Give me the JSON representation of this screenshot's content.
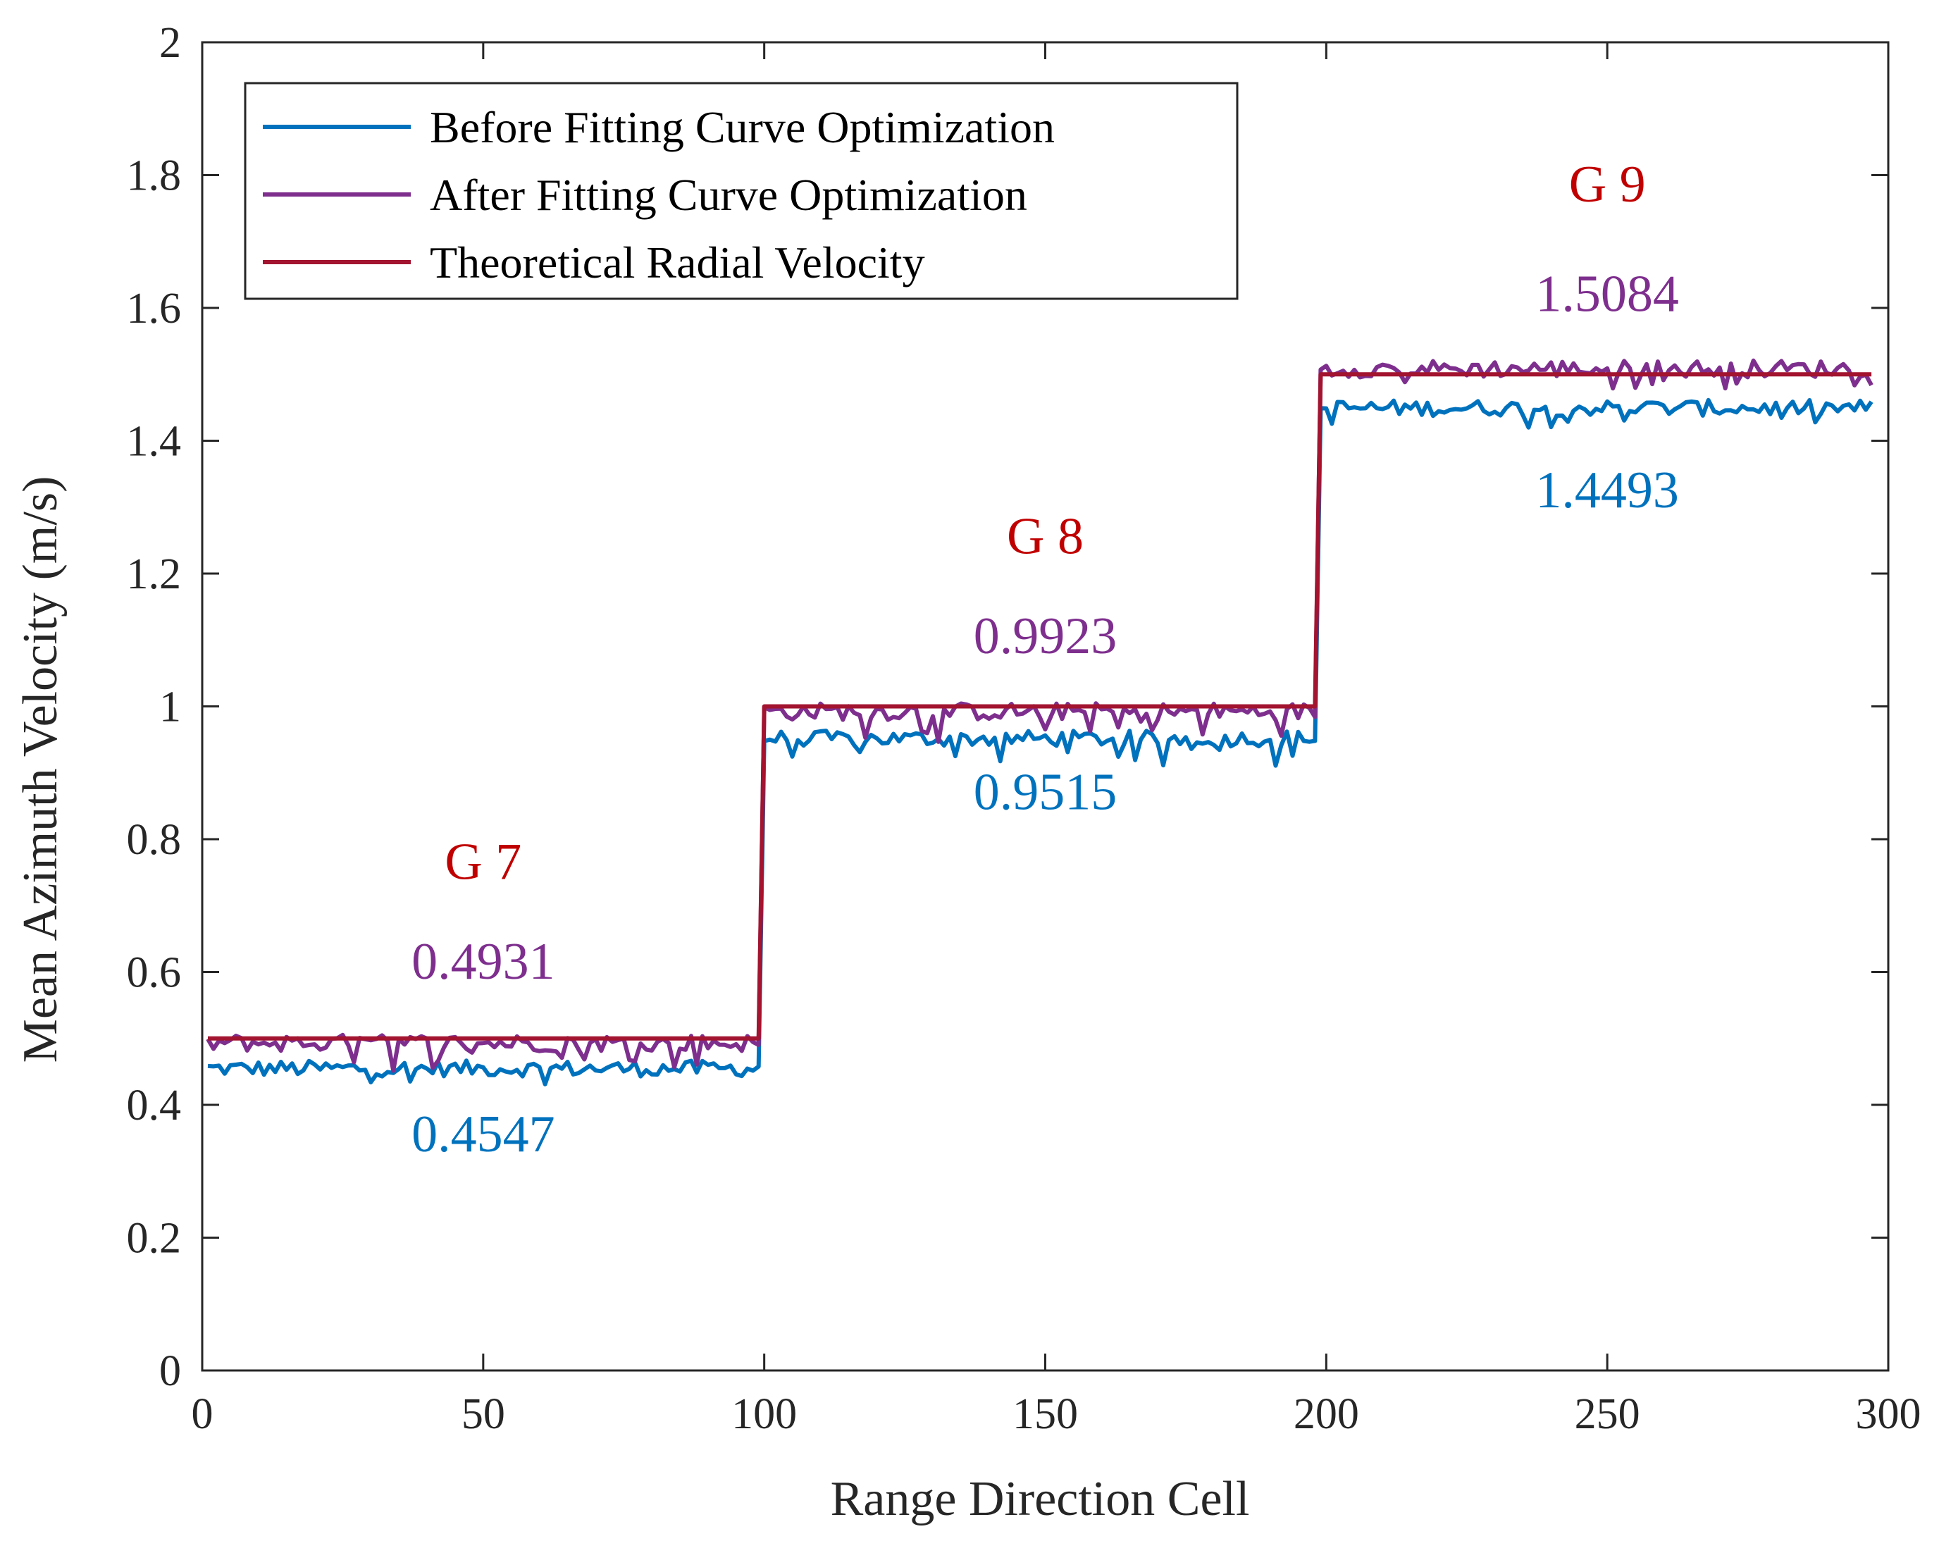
{
  "colors": {
    "before": "#0072BD",
    "after": "#7E2F8E",
    "theoretical": "#A2142F",
    "group_label": "#C00000",
    "axis": "#262626"
  },
  "chart_data": {
    "type": "line",
    "title": "",
    "xlabel": "Range Direction Cell",
    "ylabel": "Mean Azimuth Velocity (m/s)",
    "xlim": [
      0,
      300
    ],
    "ylim": [
      0,
      2
    ],
    "xticks": [
      0,
      50,
      100,
      150,
      200,
      250,
      300
    ],
    "xtick_labels": [
      "0",
      "50",
      "100",
      "150",
      "200",
      "250",
      "300"
    ],
    "yticks": [
      0,
      0.2,
      0.4,
      0.6,
      0.8,
      1,
      1.2,
      1.4,
      1.6,
      1.8,
      2
    ],
    "ytick_labels": [
      "0",
      "0.2",
      "0.4",
      "0.6",
      "0.8",
      "1",
      "1.2",
      "1.4",
      "1.6",
      "1.8",
      "2"
    ],
    "legend_position": "top-left",
    "series": [
      {
        "name": "Before Fitting Curve Optimization",
        "color": "#0072BD",
        "x_range": [
          1,
          297
        ],
        "segments": [
          {
            "x_start": 1,
            "x_end": 99,
            "mean": 0.4547,
            "noise": 0.012
          },
          {
            "x_start": 100,
            "x_end": 198,
            "mean": 0.9515,
            "noise": 0.012
          },
          {
            "x_start": 199,
            "x_end": 297,
            "mean": 1.4493,
            "noise": 0.012
          }
        ]
      },
      {
        "name": "After Fitting Curve Optimization",
        "color": "#7E2F8E",
        "x_range": [
          1,
          297
        ],
        "segments": [
          {
            "x_start": 1,
            "x_end": 99,
            "mean": 0.4931,
            "noise": 0.013
          },
          {
            "x_start": 100,
            "x_end": 198,
            "mean": 0.9923,
            "noise": 0.013
          },
          {
            "x_start": 199,
            "x_end": 297,
            "mean": 1.5084,
            "noise": 0.013
          }
        ]
      },
      {
        "name": "Theoretical Radial Velocity",
        "color": "#A2142F",
        "x": [
          1,
          99,
          100,
          198,
          199,
          297
        ],
        "y": [
          0.5,
          0.5,
          1.0,
          1.0,
          1.5,
          1.5
        ]
      }
    ],
    "annotations": [
      {
        "text": "G 7",
        "x": 50,
        "y": 0.74,
        "color": "#C00000",
        "role": "group"
      },
      {
        "text": "0.4931",
        "x": 50,
        "y": 0.59,
        "color": "#7E2F8E",
        "role": "after"
      },
      {
        "text": "0.4547",
        "x": 50,
        "y": 0.33,
        "color": "#0072BD",
        "role": "before"
      },
      {
        "text": "G 8",
        "x": 150,
        "y": 1.23,
        "color": "#C00000",
        "role": "group"
      },
      {
        "text": "0.9923",
        "x": 150,
        "y": 1.08,
        "color": "#7E2F8E",
        "role": "after"
      },
      {
        "text": "0.9515",
        "x": 150,
        "y": 0.845,
        "color": "#0072BD",
        "role": "before"
      },
      {
        "text": "G 9",
        "x": 250,
        "y": 1.76,
        "color": "#C00000",
        "role": "group"
      },
      {
        "text": "1.5084",
        "x": 250,
        "y": 1.595,
        "color": "#7E2F8E",
        "role": "after"
      },
      {
        "text": "1.4493",
        "x": 250,
        "y": 1.3,
        "color": "#0072BD",
        "role": "before"
      }
    ]
  }
}
